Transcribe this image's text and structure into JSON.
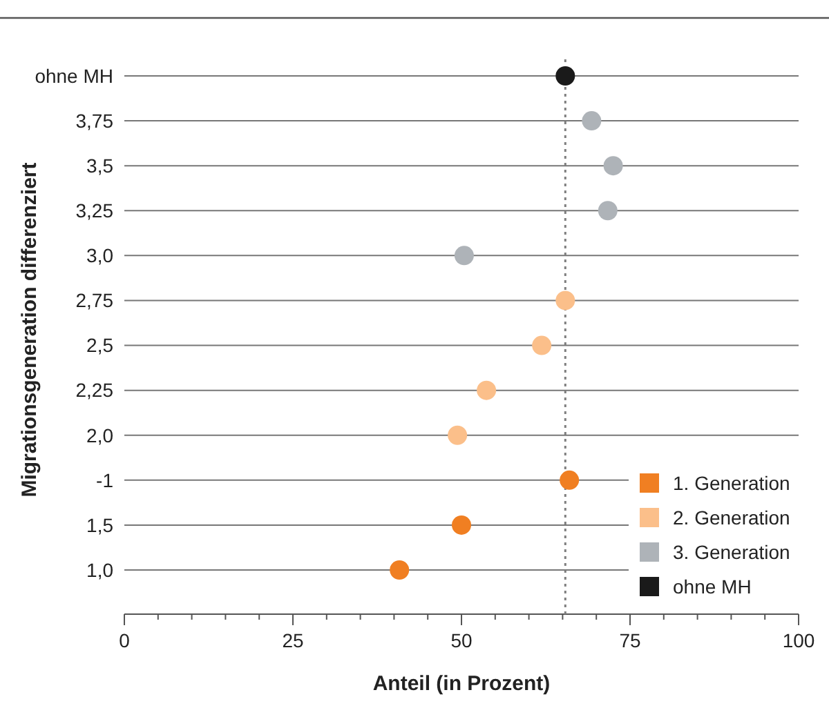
{
  "chart_data": {
    "type": "scatter",
    "orientation": "horizontal",
    "xlabel": "Anteil (in Prozent)",
    "ylabel": "Migrationsgeneration differenziert",
    "categories": [
      "ohne MH",
      "3,75",
      "3,5",
      "3,25",
      "3,0",
      "2,75",
      "2,5",
      "2,25",
      "2,0",
      "-1",
      "1,5",
      "1,0"
    ],
    "series": [
      {
        "name": "1. Generation",
        "color": "#f07f22",
        "values": [
          null,
          null,
          null,
          null,
          null,
          null,
          null,
          null,
          null,
          66,
          50,
          40.8
        ]
      },
      {
        "name": "2. Generation",
        "color": "#fbbf8a",
        "values": [
          null,
          null,
          null,
          null,
          null,
          65.4,
          61.9,
          53.7,
          49.4,
          null,
          null,
          null
        ]
      },
      {
        "name": "3. Generation",
        "color": "#aeb3b8",
        "values": [
          null,
          69.3,
          72.5,
          71.7,
          50.4,
          null,
          null,
          null,
          null,
          null,
          null,
          null
        ]
      },
      {
        "name": "ohne MH",
        "color": "#1a1a1a",
        "values": [
          65.4,
          null,
          null,
          null,
          null,
          null,
          null,
          null,
          null,
          null,
          null,
          null
        ]
      }
    ],
    "xlim": [
      0,
      100
    ],
    "xticks": [
      0,
      {
        "value": 5,
        "label": null
      },
      {
        "value": 10,
        "label": null
      },
      {
        "value": 15,
        "label": null
      },
      {
        "value": 20,
        "label": null
      },
      25,
      {
        "value": 30,
        "label": null
      },
      {
        "value": 35,
        "label": null
      },
      {
        "value": 40,
        "label": null
      },
      {
        "value": 45,
        "label": null
      },
      50,
      {
        "value": 55,
        "label": null
      },
      {
        "value": 60,
        "label": null
      },
      {
        "value": 65,
        "label": null
      },
      {
        "value": 70,
        "label": null
      },
      75,
      {
        "value": 80,
        "label": null
      },
      {
        "value": 85,
        "label": null
      },
      {
        "value": 90,
        "label": null
      },
      {
        "value": 95,
        "label": null
      },
      100
    ],
    "ref_lines": [
      {
        "axis": "x",
        "value": 65.4,
        "color": "#7f7f7f",
        "line_style": "dotted"
      }
    ],
    "grid": "y",
    "legend": "bottom right",
    "marker": "circle"
  }
}
